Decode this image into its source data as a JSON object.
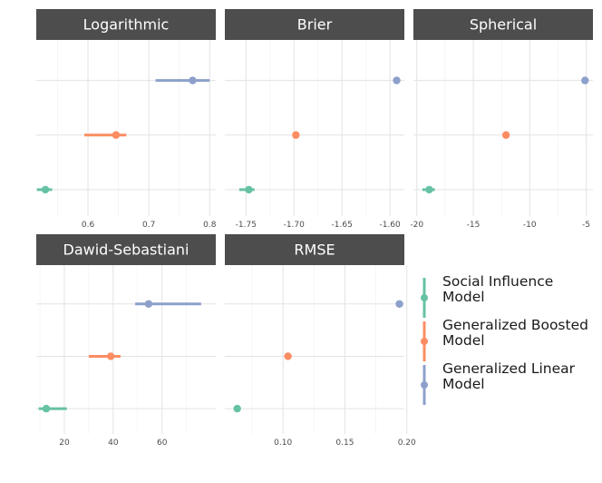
{
  "chart_data": {
    "type": "forest",
    "series": [
      {
        "name": "Social Influence\nModel",
        "color": "#66c2a5"
      },
      {
        "name": "Generalized Boosted\nModel",
        "color": "#fc8d62"
      },
      {
        "name": "Generalized Linear\nModel",
        "color": "#8da0cb"
      }
    ],
    "panels": [
      {
        "title": "Logarithmic",
        "xlim": [
          0.515,
          0.81
        ],
        "ticks": [
          0.6,
          0.7,
          0.8
        ],
        "tick_labels": [
          "0.6",
          "0.7",
          "0.8"
        ],
        "minor_ticks": [
          0.55,
          0.65,
          0.75
        ],
        "points": [
          {
            "series": 0,
            "estimate": 0.53,
            "low": 0.516,
            "high": 0.541
          },
          {
            "series": 1,
            "estimate": 0.646,
            "low": 0.594,
            "high": 0.663
          },
          {
            "series": 2,
            "estimate": 0.772,
            "low": 0.711,
            "high": 0.8
          }
        ]
      },
      {
        "title": "Brier",
        "xlim": [
          -1.772,
          -1.585
        ],
        "ticks": [
          -1.75,
          -1.7,
          -1.65,
          -1.6
        ],
        "tick_labels": [
          "-1.75",
          "-1.70",
          "-1.65",
          "-1.60"
        ],
        "minor_ticks": [
          -1.725,
          -1.675,
          -1.625
        ],
        "points": [
          {
            "series": 0,
            "estimate": -1.747,
            "low": -1.757,
            "high": -1.741
          },
          {
            "series": 1,
            "estimate": -1.698,
            "low": -1.698,
            "high": -1.698
          },
          {
            "series": 2,
            "estimate": -1.593,
            "low": -1.593,
            "high": -1.593
          }
        ]
      },
      {
        "title": "Spherical",
        "xlim": [
          -20.3,
          -4.4
        ],
        "ticks": [
          -20,
          -15,
          -10,
          -5
        ],
        "tick_labels": [
          "-20",
          "-15",
          "-10",
          "-5"
        ],
        "minor_ticks": [
          -17.5,
          -12.5,
          -7.5
        ],
        "points": [
          {
            "series": 0,
            "estimate": -18.9,
            "low": -19.5,
            "high": -18.4
          },
          {
            "series": 1,
            "estimate": -12.1,
            "low": -12.1,
            "high": -12.1
          },
          {
            "series": 2,
            "estimate": -5.1,
            "low": -5.1,
            "high": -5.1
          }
        ]
      },
      {
        "title": "Dawid-Sebastiani",
        "xlim": [
          8.5,
          82
        ],
        "ticks": [
          20,
          40,
          60
        ],
        "tick_labels": [
          "20",
          "40",
          "60"
        ],
        "minor_ticks": [
          10,
          30,
          50,
          70
        ],
        "points": [
          {
            "series": 0,
            "estimate": 12.6,
            "low": 9.5,
            "high": 21
          },
          {
            "series": 1,
            "estimate": 39,
            "low": 30,
            "high": 43
          },
          {
            "series": 2,
            "estimate": 54.5,
            "low": 49,
            "high": 76
          }
        ]
      },
      {
        "title": "RMSE",
        "xlim": [
          0.053,
          0.198
        ],
        "ticks": [
          0.1,
          0.15,
          0.2
        ],
        "tick_labels": [
          "0.10",
          "0.15",
          "0.20"
        ],
        "minor_ticks": [
          0.075,
          0.125,
          0.175
        ],
        "points": [
          {
            "series": 0,
            "estimate": 0.063,
            "low": 0.063,
            "high": 0.063
          },
          {
            "series": 1,
            "estimate": 0.104,
            "low": 0.104,
            "high": 0.104
          },
          {
            "series": 2,
            "estimate": 0.194,
            "low": 0.194,
            "high": 0.194
          }
        ]
      }
    ]
  }
}
